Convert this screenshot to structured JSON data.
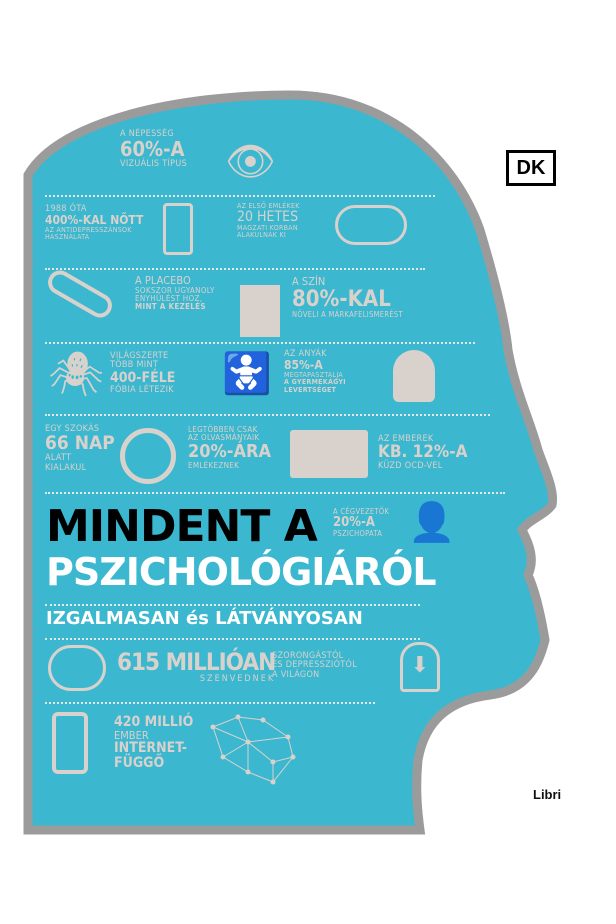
{
  "publisher": "DK",
  "imprint": "Libri",
  "colors": {
    "head": "#3bb8cf",
    "outline": "#9b9b9b",
    "text": "#d9d1cc",
    "title": "#000000"
  },
  "title": {
    "line1": "MINDENT A",
    "line2": "PSZICHOLÓGIÁRÓL",
    "subtitle": "IZGALMASAN és LÁTVÁNYOSAN"
  },
  "facts": [
    {
      "icon": "eye-icon",
      "lines": [
        "A NÉPESSÉG",
        "60%-A",
        "VIZUÁLIS TÍPUS"
      ]
    },
    {
      "icon": "pill-jar-icon",
      "lines": [
        "1988 ÓTA",
        "400%-KAL NŐTT",
        "AZ ANTIDEPRESSZÁNSOK",
        "HASZNÁLATA"
      ]
    },
    {
      "icon": "fetus-cloud-icon",
      "lines": [
        "AZ ELSŐ EMLÉKEK",
        "20 HETES",
        "MAGZATI KORBAN",
        "ALAKULNAK KI"
      ]
    },
    {
      "icon": "capsule-icon",
      "lines": [
        "A PLACEBO",
        "SOKSZOR UGYANOLY",
        "ENYHÜLÉST HOZ,",
        "MINT A KEZELÉS"
      ]
    },
    {
      "icon": "shopping-bag-icon",
      "lines": [
        "A SZÍN",
        "80%-KAL",
        "NÖVELI A MÁRKAFELISMERÉST"
      ]
    },
    {
      "icon": "spider-icon",
      "lines": [
        "VILÁGSZERTE",
        "TÖBB MINT",
        "400-FÉLE",
        "FÓBIA LÉTEZIK"
      ]
    },
    {
      "icon": "mother-baby-icon",
      "lines": [
        "AZ ANYÁK",
        "85%-A",
        "MEGTAPASZTALJA",
        "A GYERMEKÁGYI",
        "LEVERTSÉGET"
      ]
    },
    {
      "icon": "head-rain-icon",
      "lines": []
    },
    {
      "icon": "no-smoking-icon",
      "lines": [
        "EGY SZOKÁS",
        "66 NAP",
        "ALATT",
        "KIALAKUL"
      ]
    },
    {
      "icon": "book-icon",
      "lines": [
        "LEGTÖBBEN CSAK",
        "AZ OLVASMÁNYAIK",
        "20%-ÁRA",
        "EMLÉKEZNEK"
      ]
    },
    {
      "icon": "",
      "lines": [
        "AZ EMBEREK",
        "KB. 12%-A",
        "KÜZD OCD-VEL"
      ]
    },
    {
      "icon": "businessman-icon",
      "lines": [
        "A CÉGVEZETŐK",
        "20%-A",
        "PSZICHOPATA"
      ]
    },
    {
      "icon": "brain-icon",
      "lines": [
        "615 MILLIÓAN",
        "SZENVEDNEK"
      ]
    },
    {
      "icon": "head-arrow-down-icon",
      "lines": [
        "SZORONGÁSTÓL",
        "ÉS DEPRESSZIÓTÓL",
        "A VILÁGON"
      ]
    },
    {
      "icon": "phone-hand-icon",
      "lines": [
        "420 MILLIÓ",
        "EMBER",
        "INTERNET-",
        "FÜGGŐ"
      ]
    },
    {
      "icon": "network-brain-icon",
      "lines": []
    }
  ]
}
